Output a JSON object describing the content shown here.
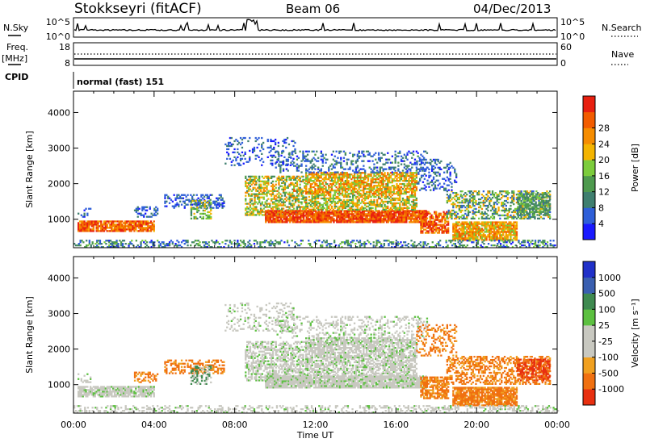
{
  "header": {
    "station": "Stokkseyri (fitACF)",
    "beam": "Beam 06",
    "date": "04/Dec/2013"
  },
  "strip_panels": {
    "nsky_label": "N.Sky",
    "nsearch_label": "N.Search",
    "freq_label": "Freq.",
    "freq_unit": "[MHz]",
    "nave_label": "Nave",
    "cpid_label": "CPID",
    "cpid_value": "normal (fast) 151",
    "noise_ticks": {
      "top": "10^5",
      "bottom": "10^0"
    },
    "freq_ticks": {
      "top": "18",
      "bottom": "8"
    },
    "nave_ticks": {
      "top": "60",
      "bottom": "0"
    }
  },
  "chart_data": [
    {
      "type": "heatmap",
      "name_role": "power-panel",
      "ylabel": "Slant Range [km]",
      "xlabel": "",
      "ylim": [
        200,
        4600
      ],
      "yticks": [
        1000,
        2000,
        3000,
        4000
      ],
      "xlim": [
        0,
        24
      ],
      "colorbar": {
        "label": "Power [dB]",
        "ticks": [
          "4",
          "8",
          "12",
          "16",
          "20",
          "24",
          "28"
        ],
        "colors": [
          "#1a1aff",
          "#2f5fd8",
          "#3f7f6f",
          "#4e9a4e",
          "#7ccc3c",
          "#f4b400",
          "#f58c00",
          "#f25c00",
          "#e82010"
        ]
      }
    },
    {
      "type": "heatmap",
      "name_role": "velocity-panel",
      "ylabel": "Slant Range [km]",
      "xlabel": "Time UT",
      "ylim": [
        200,
        4600
      ],
      "yticks": [
        1000,
        2000,
        3000,
        4000
      ],
      "xlim": [
        0,
        24
      ],
      "xticks": [
        "00:00",
        "04:00",
        "08:00",
        "12:00",
        "16:00",
        "20:00",
        "00:00"
      ],
      "colorbar": {
        "label": "Velocity [m s⁻¹]",
        "ticks": [
          "1000",
          "500",
          "100",
          "25",
          "-25",
          "-100",
          "-500",
          "-1000"
        ],
        "colors": [
          "#2030c8",
          "#3a5fb0",
          "#3f8a50",
          "#5cc040",
          "#c8c8c0",
          "#c8c8c0",
          "#f0a020",
          "#f07010",
          "#e83010"
        ]
      }
    }
  ]
}
